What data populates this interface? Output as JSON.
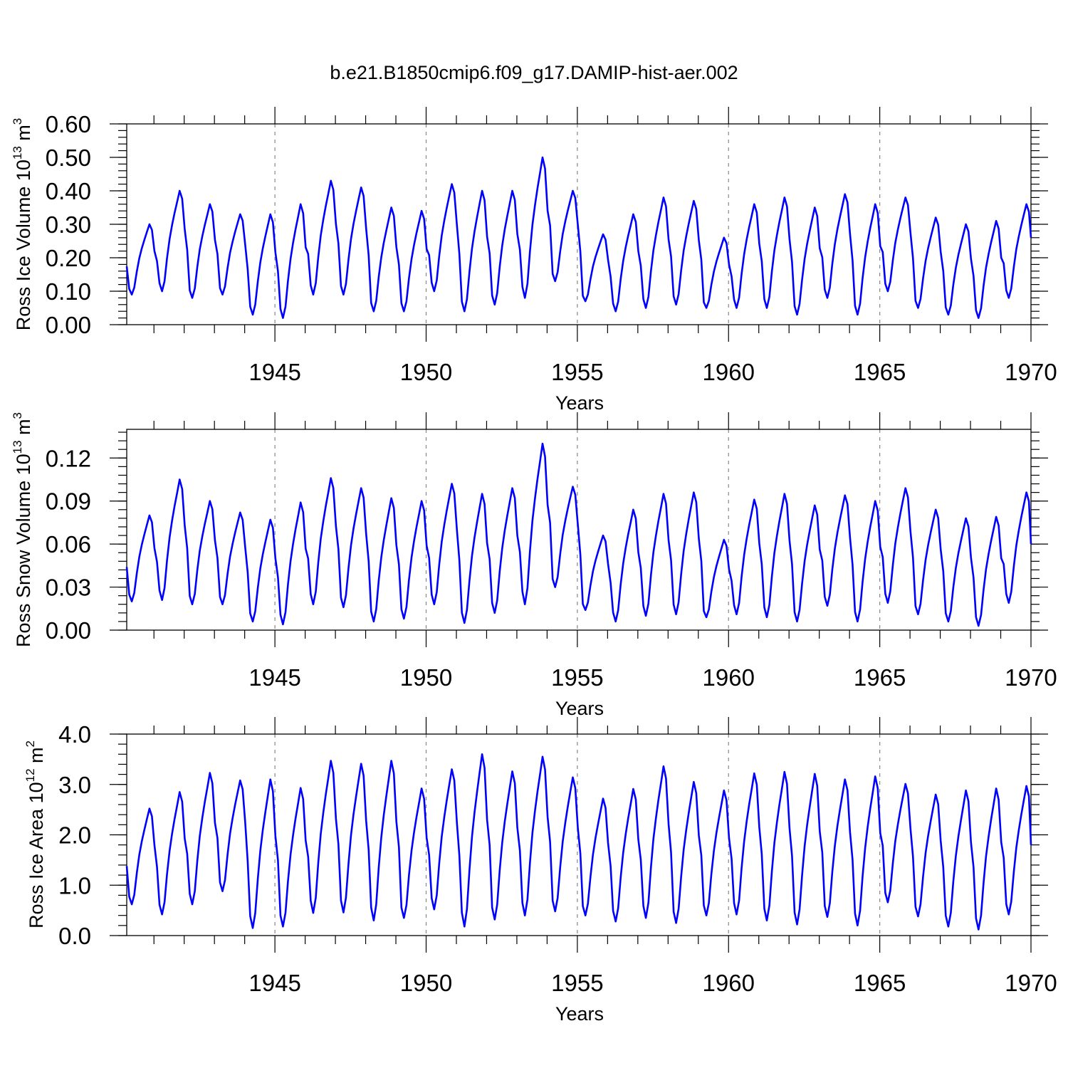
{
  "figure": {
    "title": "b.e21.B1850cmip6.f09_g17.DAMIP-hist-aer.002",
    "line_color": "#0000ff",
    "grid_color": "#888888"
  },
  "chart_data": [
    {
      "type": "line",
      "name": "ross-ice-volume",
      "title": "b.e21.B1850cmip6.f09_g17.DAMIP-hist-aer.002",
      "ylabel": "Ross Ice Volume",
      "yunit_base": "10",
      "yunit_exp": "13",
      "yunit_tail": " m",
      "yunit_tail_exp": "3",
      "xlabel": "Years",
      "xlim": [
        1940.1,
        1970.0
      ],
      "ylim": [
        0.0,
        0.6
      ],
      "ymajor_ticks": [
        0.0,
        0.1,
        0.2,
        0.3,
        0.4,
        0.5,
        0.6
      ],
      "ytick_labels": [
        "0.00",
        "0.10",
        "0.20",
        "0.30",
        "0.40",
        "0.50",
        "0.60"
      ],
      "yminor_step": 0.02,
      "xticks": [
        1945,
        1950,
        1955,
        1960,
        1965,
        1970
      ],
      "xtick_labels": [
        "1945",
        "1950",
        "1955",
        "1960",
        "1965",
        "1970"
      ],
      "grid": "dashed vertical at 1945, 1950, 1955, 1960, 1965",
      "start_year": 1940.1,
      "step_years": 0.08333,
      "series": [
        {
          "name": "Ross Ice Volume",
          "color": "#0000ff",
          "annual_min": [
            0.09,
            0.1,
            0.08,
            0.09,
            0.03,
            0.02,
            0.09,
            0.09,
            0.04,
            0.04,
            0.1,
            0.04,
            0.06,
            0.08,
            0.13,
            0.07,
            0.04,
            0.05,
            0.06,
            0.05,
            0.05,
            0.05,
            0.03,
            0.08,
            0.03,
            0.1,
            0.05,
            0.03,
            0.02,
            0.08
          ],
          "annual_max": [
            0.3,
            0.4,
            0.36,
            0.33,
            0.33,
            0.36,
            0.43,
            0.41,
            0.35,
            0.34,
            0.42,
            0.4,
            0.4,
            0.5,
            0.4,
            0.27,
            0.33,
            0.38,
            0.37,
            0.26,
            0.36,
            0.38,
            0.35,
            0.39,
            0.36,
            0.38,
            0.32,
            0.3,
            0.31,
            0.36
          ],
          "end_value": 0.26
        }
      ]
    },
    {
      "type": "line",
      "name": "ross-snow-volume",
      "ylabel": "Ross Snow Volume",
      "yunit_base": "10",
      "yunit_exp": "13",
      "yunit_tail": " m",
      "yunit_tail_exp": "3",
      "xlabel": "Years",
      "xlim": [
        1940.1,
        1970.0
      ],
      "ylim": [
        0.0,
        0.14
      ],
      "ymajor_ticks": [
        0.0,
        0.03,
        0.06,
        0.09,
        0.12
      ],
      "ytick_labels": [
        "0.00",
        "0.03",
        "0.06",
        "0.09",
        "0.12"
      ],
      "yminor_step": 0.006,
      "xticks": [
        1945,
        1950,
        1955,
        1960,
        1965,
        1970
      ],
      "xtick_labels": [
        "1945",
        "1950",
        "1955",
        "1960",
        "1965",
        "1970"
      ],
      "grid": "dashed vertical at 1945, 1950, 1955, 1960, 1965",
      "start_year": 1940.1,
      "step_years": 0.08333,
      "series": [
        {
          "name": "Ross Snow Volume",
          "color": "#0000ff",
          "annual_min": [
            0.02,
            0.021,
            0.018,
            0.018,
            0.006,
            0.004,
            0.018,
            0.016,
            0.006,
            0.008,
            0.018,
            0.005,
            0.012,
            0.018,
            0.03,
            0.014,
            0.006,
            0.01,
            0.011,
            0.009,
            0.011,
            0.009,
            0.006,
            0.017,
            0.006,
            0.019,
            0.011,
            0.006,
            0.003,
            0.019
          ],
          "annual_max": [
            0.08,
            0.105,
            0.09,
            0.082,
            0.077,
            0.089,
            0.106,
            0.099,
            0.092,
            0.09,
            0.102,
            0.095,
            0.099,
            0.13,
            0.1,
            0.066,
            0.084,
            0.095,
            0.096,
            0.063,
            0.091,
            0.095,
            0.087,
            0.094,
            0.09,
            0.099,
            0.084,
            0.078,
            0.079,
            0.096
          ],
          "end_value": 0.06
        }
      ]
    },
    {
      "type": "line",
      "name": "ross-ice-area",
      "ylabel": "Ross Ice Area",
      "yunit_base": "10",
      "yunit_exp": "12",
      "yunit_tail": " m",
      "yunit_tail_exp": "2",
      "xlabel": "Years",
      "xlim": [
        1940.1,
        1970.0
      ],
      "ylim": [
        0.0,
        4.0
      ],
      "ymajor_ticks": [
        0.0,
        1.0,
        2.0,
        3.0,
        4.0
      ],
      "ytick_labels": [
        "0.0",
        "1.0",
        "2.0",
        "3.0",
        "4.0"
      ],
      "yminor_step": 0.2,
      "xticks": [
        1945,
        1950,
        1955,
        1960,
        1965,
        1970
      ],
      "xtick_labels": [
        "1945",
        "1950",
        "1955",
        "1960",
        "1965",
        "1970"
      ],
      "grid": "dashed vertical at 1945, 1950, 1955, 1960, 1965",
      "start_year": 1940.1,
      "step_years": 0.08333,
      "series": [
        {
          "name": "Ross Ice Area",
          "color": "#0000ff",
          "annual_min": [
            0.62,
            0.42,
            0.62,
            0.88,
            0.15,
            0.18,
            0.45,
            0.46,
            0.3,
            0.35,
            0.52,
            0.18,
            0.32,
            0.4,
            0.48,
            0.4,
            0.28,
            0.35,
            0.25,
            0.4,
            0.42,
            0.3,
            0.22,
            0.37,
            0.2,
            0.66,
            0.38,
            0.18,
            0.12,
            0.42
          ],
          "annual_max": [
            2.52,
            2.85,
            3.23,
            3.08,
            3.1,
            2.93,
            3.47,
            3.41,
            3.47,
            2.92,
            3.3,
            3.6,
            3.26,
            3.55,
            3.14,
            2.72,
            2.91,
            3.36,
            3.05,
            2.88,
            3.22,
            3.25,
            3.21,
            3.1,
            3.16,
            3.01,
            2.8,
            2.88,
            2.92,
            2.97
          ],
          "end_value": 1.8
        }
      ]
    }
  ]
}
